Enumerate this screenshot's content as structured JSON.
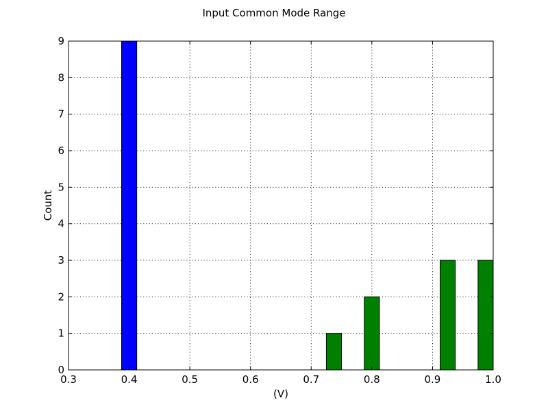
{
  "chart_data": {
    "type": "bar",
    "title": "Input Common Mode Range",
    "xlabel": "(V)",
    "ylabel": "Count",
    "xlim": [
      0.3,
      1.0
    ],
    "ylim": [
      0,
      9
    ],
    "xticks": [
      "0.3",
      "0.4",
      "0.5",
      "0.6",
      "0.7",
      "0.8",
      "0.9",
      "1.0"
    ],
    "yticks": [
      "0",
      "1",
      "2",
      "3",
      "4",
      "5",
      "6",
      "7",
      "8",
      "9"
    ],
    "grid": true,
    "bin_width": 0.025,
    "series": [
      {
        "color": "#0000ff",
        "bars": [
          {
            "x": 0.4,
            "value": 9
          },
          {
            "x": 0.4625,
            "value": 0
          },
          {
            "x": 0.525,
            "value": 0
          },
          {
            "x": 0.5875,
            "value": 0
          },
          {
            "x": 0.65,
            "value": 0
          },
          {
            "x": 0.7125,
            "value": 0
          },
          {
            "x": 0.775,
            "value": 0
          },
          {
            "x": 0.8375,
            "value": 0
          },
          {
            "x": 0.9,
            "value": 0
          },
          {
            "x": 0.9625,
            "value": 0
          }
        ]
      },
      {
        "color": "#008000",
        "bars": [
          {
            "x": 0.425,
            "value": 0
          },
          {
            "x": 0.4875,
            "value": 0
          },
          {
            "x": 0.55,
            "value": 0
          },
          {
            "x": 0.6125,
            "value": 0
          },
          {
            "x": 0.675,
            "value": 0
          },
          {
            "x": 0.7375,
            "value": 1
          },
          {
            "x": 0.8,
            "value": 2
          },
          {
            "x": 0.8625,
            "value": 0
          },
          {
            "x": 0.925,
            "value": 3
          },
          {
            "x": 0.9875,
            "value": 3
          }
        ]
      }
    ]
  }
}
